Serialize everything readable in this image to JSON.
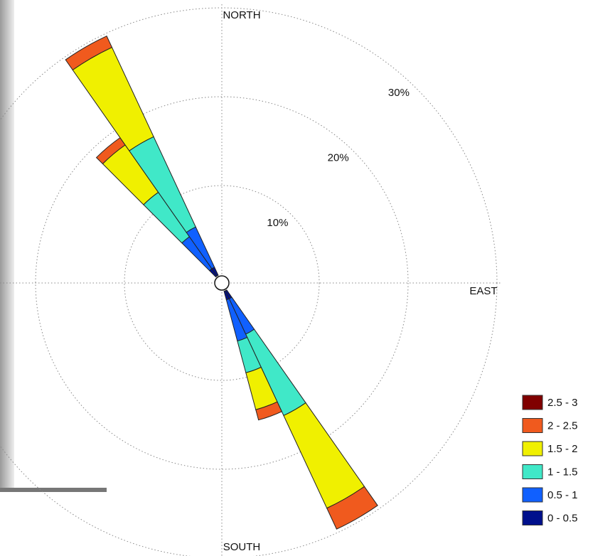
{
  "chart_data": {
    "type": "windrose",
    "directions": [
      320,
      330,
      150,
      160
    ],
    "direction_labels": {
      "north": "NORTH",
      "east": "EAST",
      "south": "SOUTH"
    },
    "rlim": [
      0,
      30
    ],
    "rticks": [
      {
        "value": 10,
        "label": "10%"
      },
      {
        "value": 20,
        "label": "20%"
      },
      {
        "value": 30,
        "label": "30%"
      }
    ],
    "grid": true,
    "legend": "bottom-right",
    "series": [
      {
        "name": "0 - 0.5",
        "color": "#00108c",
        "values": [
          1,
          1,
          1,
          1
        ]
      },
      {
        "name": "0.5 - 1",
        "color": "#1060ff",
        "values": [
          4.4,
          5,
          4.4,
          4.8
        ]
      },
      {
        "name": "1 - 1.5",
        "color": "#40e8c8",
        "values": [
          6.1,
          11.2,
          10.1,
          3.7
        ]
      },
      {
        "name": "1.5 - 2",
        "color": "#f0f000",
        "values": [
          6.5,
          11.1,
          11.5,
          4.3
        ]
      },
      {
        "name": "2 - 2.5",
        "color": "#f05a1e",
        "values": [
          1,
          1.4,
          2.6,
          1.2
        ]
      },
      {
        "name": "2.5 - 3",
        "color": "#800000",
        "values": [
          0,
          0,
          0,
          0
        ]
      }
    ]
  }
}
